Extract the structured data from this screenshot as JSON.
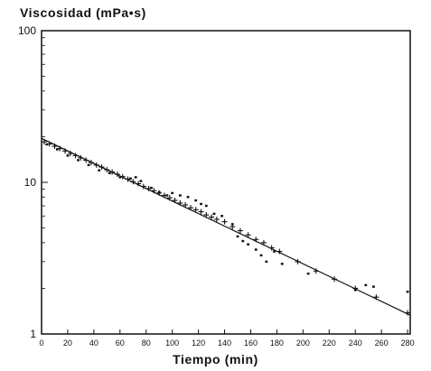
{
  "chart_data": {
    "type": "scatter",
    "title": "Viscosidad (mPa•s)",
    "xlabel": "Tiempo (min)",
    "ylabel": "",
    "x_ticks": [
      "0",
      "20",
      "40",
      "60",
      "80",
      "100",
      "120",
      "140",
      "160",
      "180",
      "200",
      "220",
      "240",
      "260",
      "280"
    ],
    "y_ticks": [
      "1",
      "10",
      "100"
    ],
    "xlim": [
      0,
      282
    ],
    "ylim": [
      1,
      100
    ],
    "y_scale": "log",
    "grid": false,
    "series": [
      {
        "marker": "plus",
        "points": [
          [
            2,
            18.5
          ],
          [
            6,
            17.9
          ],
          [
            10,
            17.3
          ],
          [
            14,
            16.7
          ],
          [
            18,
            16.1
          ],
          [
            22,
            15.5
          ],
          [
            26,
            15.0
          ],
          [
            30,
            14.5
          ],
          [
            34,
            14.0
          ],
          [
            38,
            13.5
          ],
          [
            42,
            13.0
          ],
          [
            46,
            12.6
          ],
          [
            50,
            12.1
          ],
          [
            54,
            11.7
          ],
          [
            58,
            11.3
          ],
          [
            62,
            10.9
          ],
          [
            66,
            10.5
          ],
          [
            70,
            10.1
          ],
          [
            74,
            9.8
          ],
          [
            78,
            9.4
          ],
          [
            82,
            9.1
          ],
          [
            86,
            8.8
          ],
          [
            90,
            8.5
          ],
          [
            94,
            8.2
          ],
          [
            98,
            7.9
          ],
          [
            102,
            7.6
          ],
          [
            106,
            7.3
          ],
          [
            110,
            7.1
          ],
          [
            114,
            6.8
          ],
          [
            118,
            6.6
          ],
          [
            122,
            6.4
          ],
          [
            126,
            6.1
          ],
          [
            130,
            5.9
          ],
          [
            134,
            5.7
          ],
          [
            140,
            5.5
          ],
          [
            146,
            5.1
          ],
          [
            152,
            4.8
          ],
          [
            158,
            4.5
          ],
          [
            164,
            4.2
          ],
          [
            170,
            4.0
          ],
          [
            176,
            3.7
          ],
          [
            182,
            3.5
          ],
          [
            196,
            3.0
          ],
          [
            210,
            2.6
          ],
          [
            224,
            2.3
          ],
          [
            240,
            2.0
          ],
          [
            256,
            1.75
          ],
          [
            280,
            1.38
          ]
        ]
      },
      {
        "marker": "dot",
        "points": [
          [
            4,
            17.8
          ],
          [
            12,
            16.5
          ],
          [
            20,
            15.0
          ],
          [
            28,
            14.0
          ],
          [
            36,
            13.0
          ],
          [
            44,
            12.0
          ],
          [
            52,
            11.5
          ],
          [
            60,
            10.8
          ],
          [
            68,
            10.6
          ],
          [
            72,
            10.8
          ],
          [
            76,
            10.2
          ],
          [
            84,
            9.2
          ],
          [
            90,
            8.6
          ],
          [
            96,
            8.2
          ],
          [
            100,
            8.5
          ],
          [
            106,
            8.2
          ],
          [
            112,
            8.0
          ],
          [
            118,
            7.6
          ],
          [
            122,
            7.2
          ],
          [
            126,
            7.0
          ],
          [
            132,
            6.2
          ],
          [
            138,
            6.0
          ],
          [
            146,
            5.3
          ],
          [
            150,
            4.4
          ],
          [
            154,
            4.1
          ],
          [
            158,
            3.9
          ],
          [
            164,
            3.6
          ],
          [
            168,
            3.3
          ],
          [
            172,
            3.0
          ],
          [
            178,
            3.5
          ],
          [
            184,
            2.9
          ],
          [
            204,
            2.5
          ],
          [
            240,
            1.95
          ],
          [
            248,
            2.1
          ],
          [
            254,
            2.05
          ],
          [
            280,
            1.9
          ]
        ]
      }
    ],
    "fit_line": {
      "x": [
        0,
        282
      ],
      "y": [
        19.5,
        1.33
      ]
    }
  }
}
